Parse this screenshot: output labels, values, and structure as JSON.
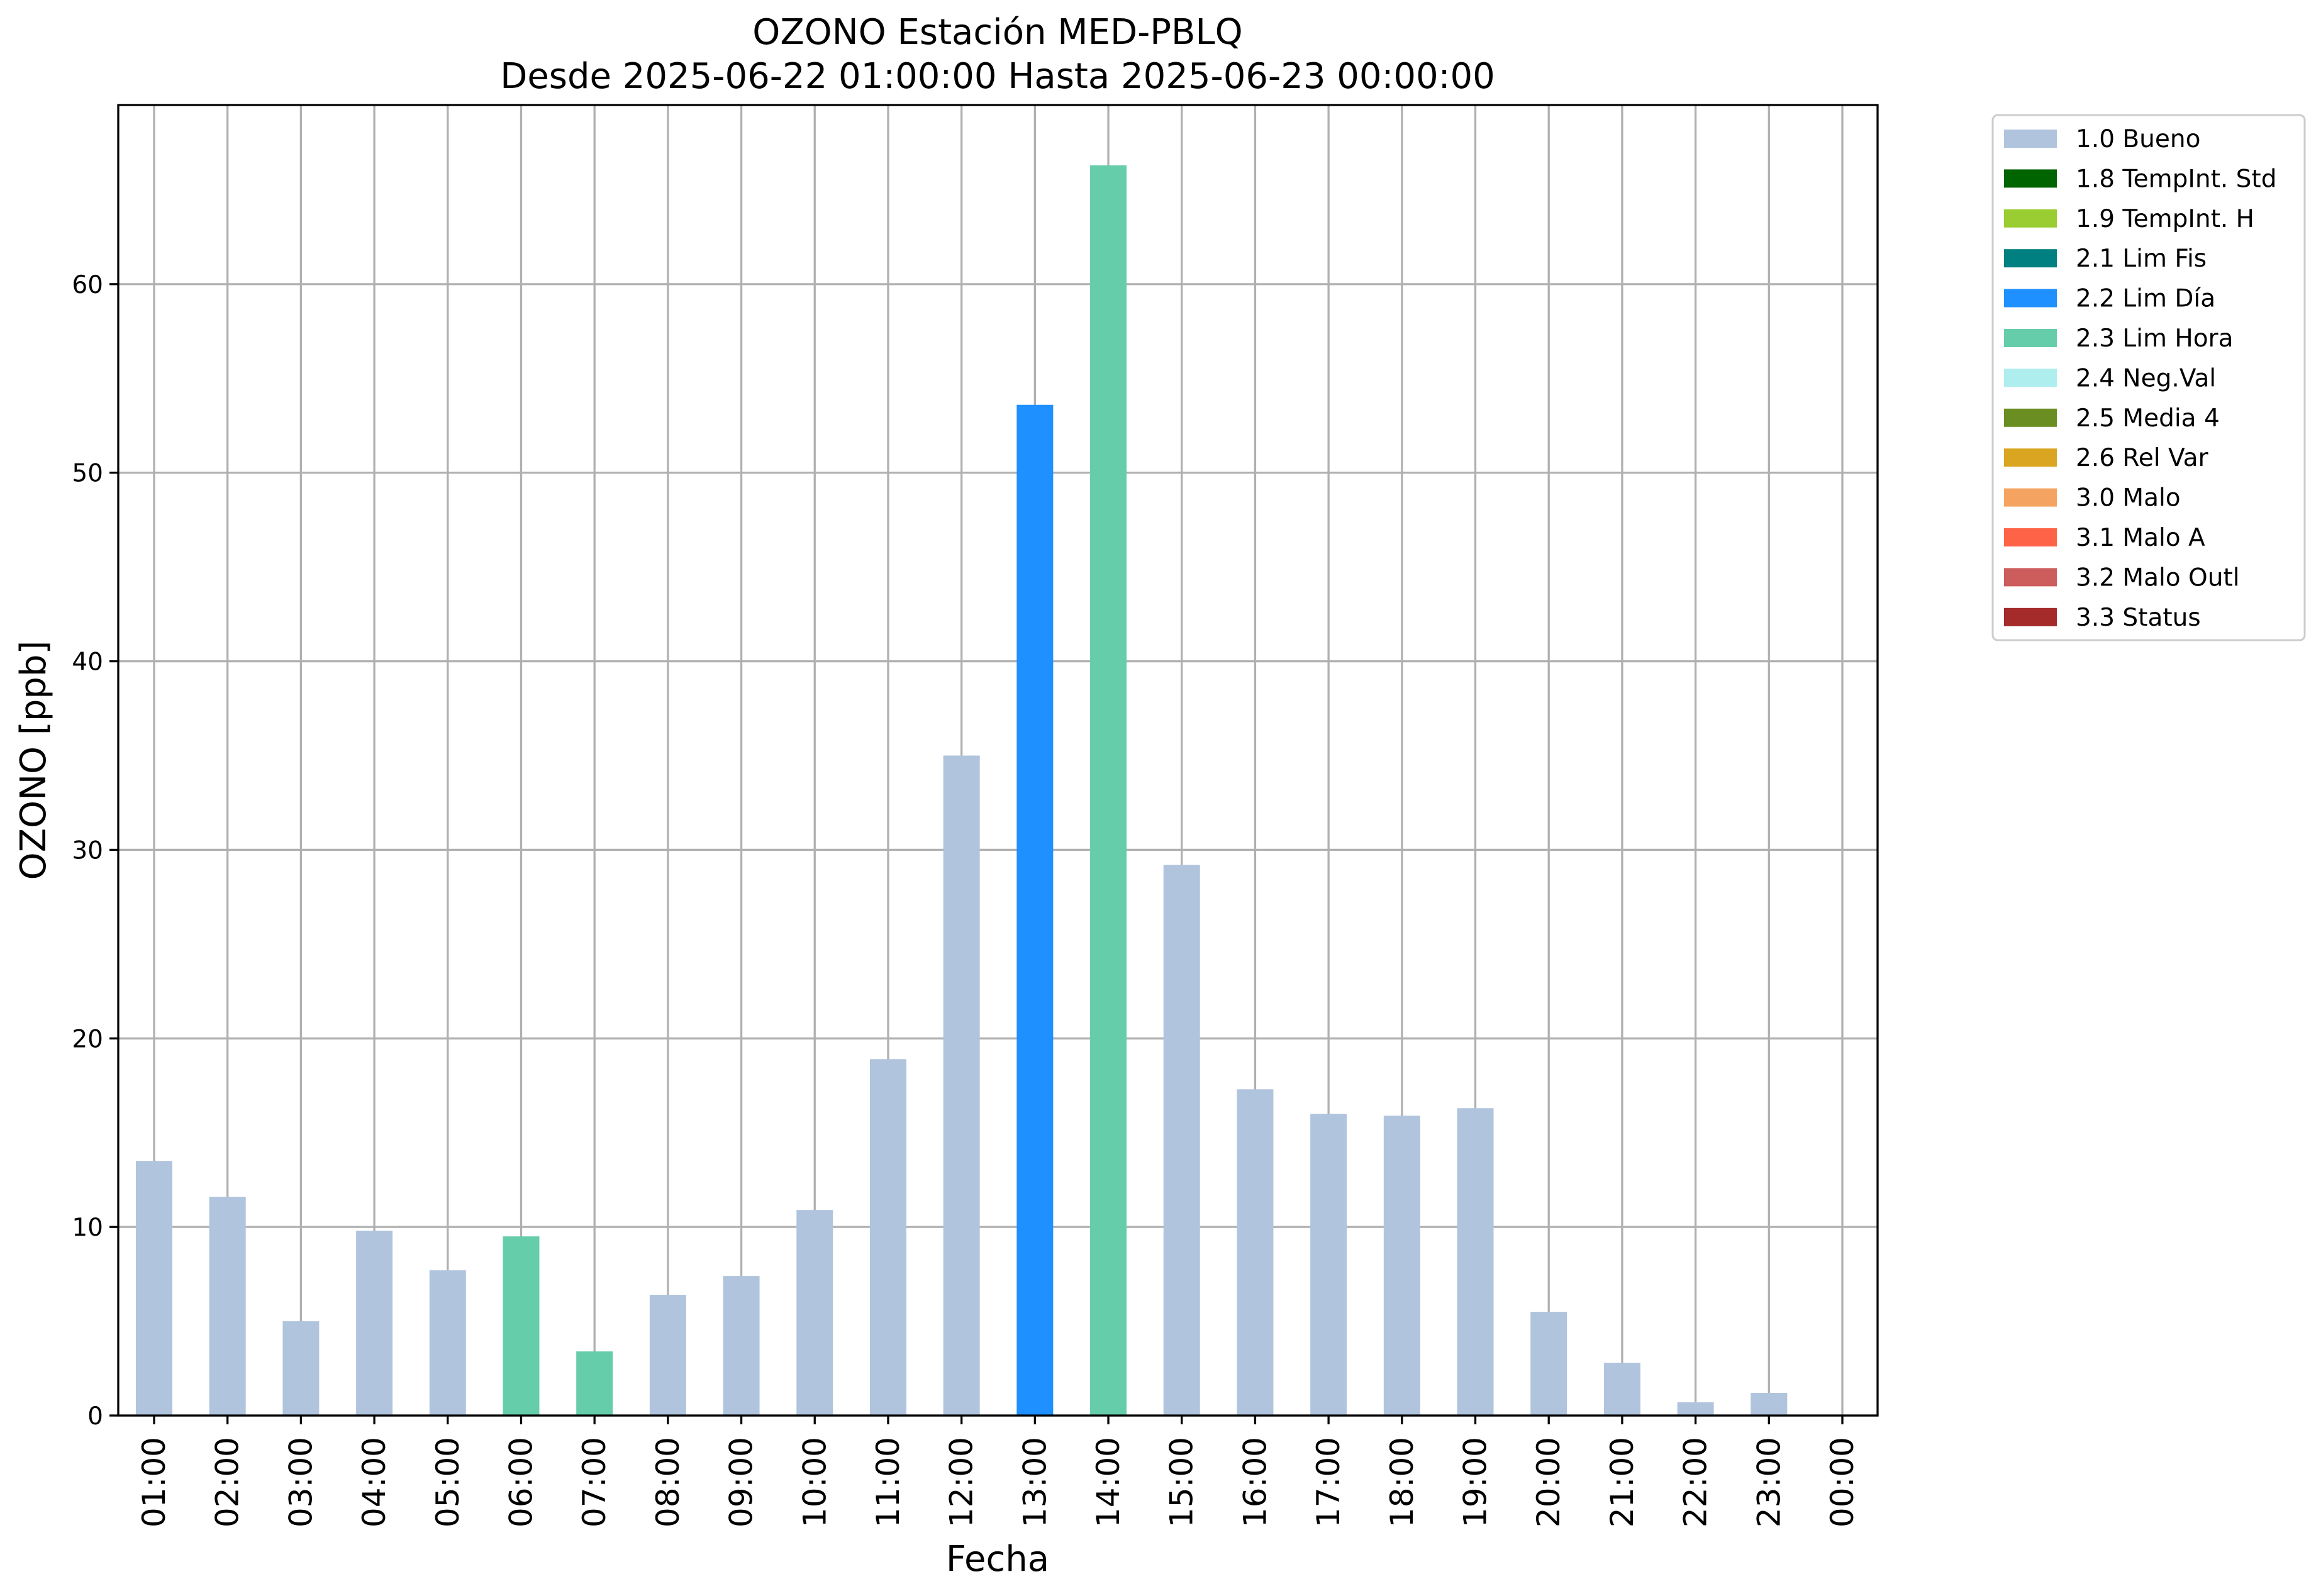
{
  "chart_data": {
    "type": "bar",
    "title": "OZONO Estación MED-PBLQ",
    "subtitle": "Desde 2025-06-22 01:00:00 Hasta 2025-06-23 00:00:00",
    "xlabel": "Fecha",
    "ylabel": "OZONO [ppb]",
    "ylim": [
      0,
      69.5
    ],
    "yticks": [
      0,
      10,
      20,
      30,
      40,
      50,
      60
    ],
    "grid": true,
    "legend_position": "outside top-right",
    "categories": [
      "01:00",
      "02:00",
      "03:00",
      "04:00",
      "05:00",
      "06:00",
      "07:00",
      "08:00",
      "09:00",
      "10:00",
      "11:00",
      "12:00",
      "13:00",
      "14:00",
      "15:00",
      "16:00",
      "17:00",
      "18:00",
      "19:00",
      "20:00",
      "21:00",
      "22:00",
      "23:00",
      "00:00"
    ],
    "values": [
      13.5,
      11.6,
      5.0,
      9.8,
      7.7,
      9.5,
      3.4,
      6.4,
      7.4,
      10.9,
      18.9,
      35.0,
      53.6,
      66.3,
      29.2,
      17.3,
      16.0,
      15.9,
      16.3,
      5.5,
      2.8,
      0.7,
      1.2,
      null
    ],
    "flags": [
      "1.0 Bueno",
      "1.0 Bueno",
      "1.0 Bueno",
      "1.0 Bueno",
      "1.0 Bueno",
      "2.3 Lim Hora",
      "2.3 Lim Hora",
      "1.0 Bueno",
      "1.0 Bueno",
      "1.0 Bueno",
      "1.0 Bueno",
      "1.0 Bueno",
      "2.2 Lim Día",
      "2.3 Lim Hora",
      "1.0 Bueno",
      "1.0 Bueno",
      "1.0 Bueno",
      "1.0 Bueno",
      "1.0 Bueno",
      "1.0 Bueno",
      "1.0 Bueno",
      "1.0 Bueno",
      "1.0 Bueno",
      null
    ],
    "legend": [
      {
        "label": "1.0 Bueno",
        "color": "#b0c4de"
      },
      {
        "label": "1.8 TempInt. Std",
        "color": "#006400"
      },
      {
        "label": "1.9 TempInt. H",
        "color": "#9acd32"
      },
      {
        "label": "2.1 Lim Fis",
        "color": "#008080"
      },
      {
        "label": "2.2 Lim Día",
        "color": "#1e90ff"
      },
      {
        "label": "2.3 Lim Hora",
        "color": "#66cdaa"
      },
      {
        "label": "2.4 Neg.Val",
        "color": "#afeeee"
      },
      {
        "label": "2.5 Media 4",
        "color": "#6b8e23"
      },
      {
        "label": "2.6 Rel Var",
        "color": "#daa520"
      },
      {
        "label": "3.0 Malo",
        "color": "#f4a460"
      },
      {
        "label": "3.1 Malo A",
        "color": "#ff6347"
      },
      {
        "label": "3.2 Malo Outl",
        "color": "#cd5c5c"
      },
      {
        "label": "3.3 Status",
        "color": "#a52a2a"
      }
    ]
  }
}
